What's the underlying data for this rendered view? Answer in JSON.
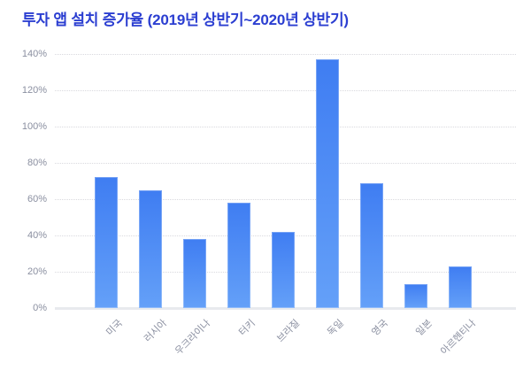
{
  "title": "투자 앱 설치 증가율 (2019년 상반기~2020년 상반기)",
  "colors": {
    "title": "#2b3ed1",
    "axis_label": "#8a8fa0",
    "grid": "#d9d9de",
    "baseline": "#e8eaee",
    "bar_top": "#3f7df2",
    "bar_bottom": "#64a0f8"
  },
  "chart_data": {
    "type": "bar",
    "title": "투자 앱 설치 증가율 (2019년 상반기~2020년 상반기)",
    "categories": [
      "미국",
      "러시아",
      "우크라이나",
      "터키",
      "브라질",
      "독일",
      "영국",
      "일본",
      "아르헨티나"
    ],
    "values": [
      72,
      65,
      38,
      58,
      42,
      137,
      69,
      13,
      23
    ],
    "unit": "%",
    "xlabel": "",
    "ylabel": "",
    "ylim": [
      0,
      140
    ],
    "yticks": [
      "0%",
      "20%",
      "40%",
      "60%",
      "80%",
      "100%",
      "120%",
      "140%"
    ],
    "grid": "horizontal-dotted",
    "legend": "none",
    "background": "#ffffff"
  }
}
